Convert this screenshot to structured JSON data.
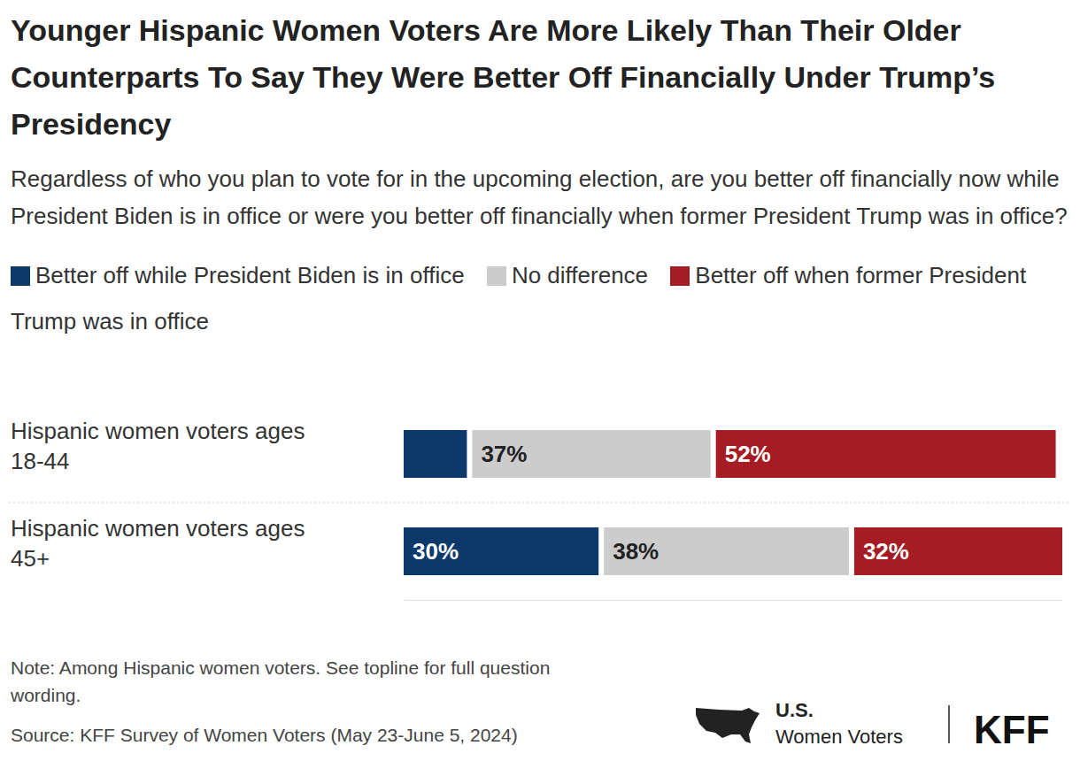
{
  "chart_data": {
    "type": "bar",
    "orientation": "horizontal",
    "stacked": true,
    "title": "Younger Hispanic Women Voters Are More Likely Than Their Older Counterparts To Say They Were Better Off Financially Under Trump’s Presidency",
    "subtitle": "Regardless of who you plan to vote for in the upcoming election, are you better off financially now while President Biden is in office or were you better off financially when former President Trump was in office?",
    "categories": [
      "Hispanic women voters ages 18-44",
      "Hispanic women voters ages 45+"
    ],
    "series": [
      {
        "name": "Better off while President Biden is in office",
        "color": "#0b3a6a",
        "values": [
          10,
          30
        ],
        "value_labels": [
          null,
          "30%"
        ]
      },
      {
        "name": "No difference",
        "color": "#cccccc",
        "values": [
          37,
          38
        ],
        "value_labels": [
          "37%",
          "38%"
        ]
      },
      {
        "name": "Better off when former President Trump was in office",
        "color": "#a51c24",
        "values": [
          52,
          32
        ],
        "value_labels": [
          "52%",
          "32%"
        ]
      }
    ],
    "xlim": [
      0,
      100
    ],
    "tick_labels": false,
    "data_labels": true,
    "legend": "top",
    "notes": "Note: Among Hispanic women voters. See topline for full question wording.",
    "source": "Source: KFF Survey of Women Voters (May 23-June 5, 2024)",
    "branding": [
      "U.S.",
      "Women Voters",
      "KFF"
    ]
  }
}
